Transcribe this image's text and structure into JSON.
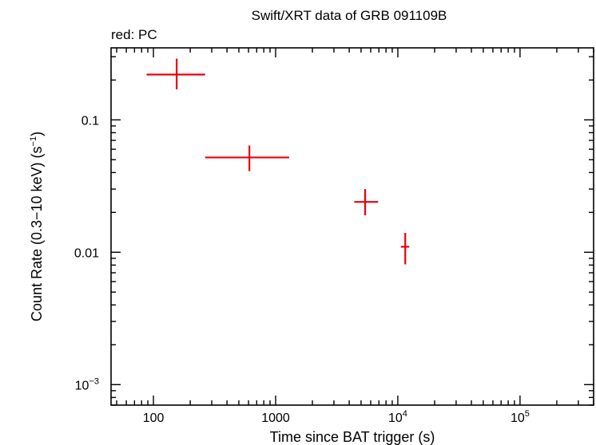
{
  "chart_data": {
    "type": "scatter",
    "title": "Swift/XRT data of GRB 091109B",
    "legend_text": "red: PC",
    "xlabel": "Time since BAT trigger (s)",
    "ylabel": "Count Rate (0.3−10 keV) (s",
    "ylabel_sup": "−1",
    "ylabel_close": ")",
    "x_scale": "log",
    "y_scale": "log",
    "xlim": [
      45,
      400000
    ],
    "ylim": [
      0.0007,
      0.35
    ],
    "x_ticks": [
      {
        "value": 100,
        "label": "100",
        "sup": ""
      },
      {
        "value": 1000,
        "label": "1000",
        "sup": ""
      },
      {
        "value": 10000,
        "label": "10",
        "sup": "4"
      },
      {
        "value": 100000,
        "label": "10",
        "sup": "5"
      }
    ],
    "y_ticks": [
      {
        "value": 0.1,
        "label": "0.1",
        "sup": ""
      },
      {
        "value": 0.01,
        "label": "0.01",
        "sup": ""
      },
      {
        "value": 0.001,
        "label": "10",
        "sup": "−3"
      }
    ],
    "grid": false,
    "series": [
      {
        "color": "#e8000b",
        "points": [
          {
            "x": 155,
            "xlo": 88,
            "xhi": 265,
            "y": 0.22,
            "ylo": 0.17,
            "yhi": 0.29
          },
          {
            "x": 610,
            "xlo": 265,
            "xhi": 1290,
            "y": 0.052,
            "ylo": 0.041,
            "yhi": 0.064
          },
          {
            "x": 5400,
            "xlo": 4400,
            "xhi": 6900,
            "y": 0.024,
            "ylo": 0.019,
            "yhi": 0.03
          },
          {
            "x": 11500,
            "xlo": 10600,
            "xhi": 12400,
            "y": 0.011,
            "ylo": 0.0081,
            "yhi": 0.014
          }
        ]
      }
    ]
  }
}
